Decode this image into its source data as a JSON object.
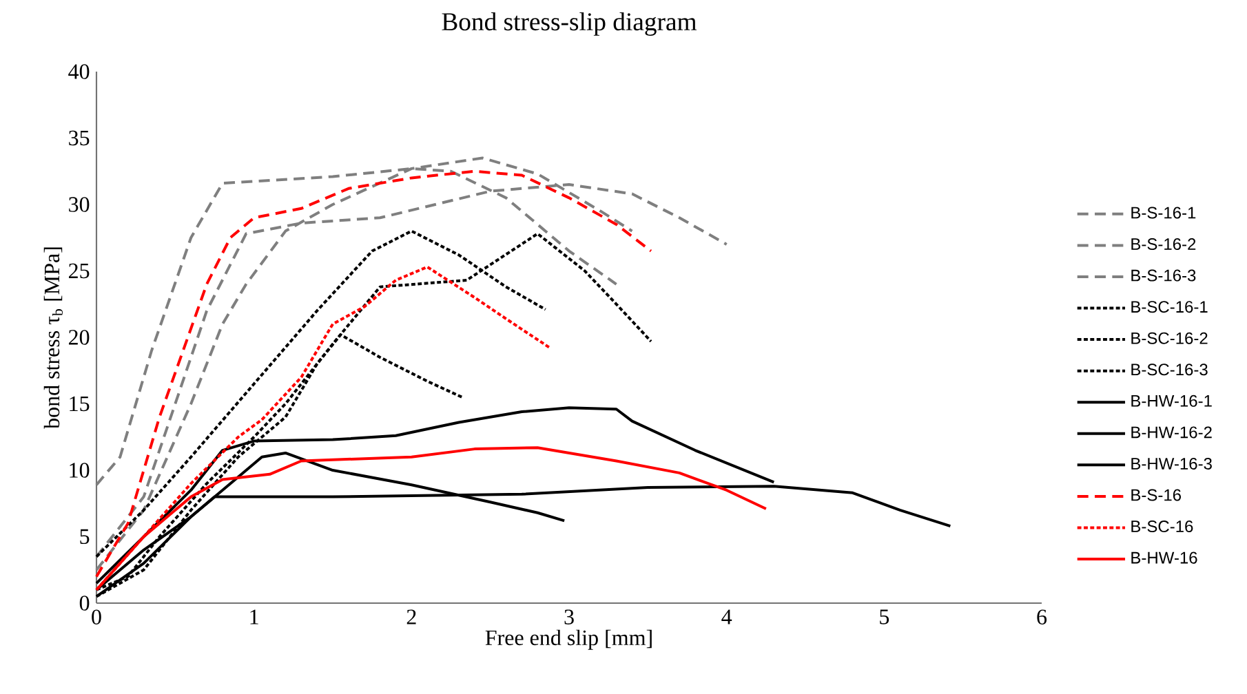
{
  "chart_data": {
    "type": "line",
    "title": "Bond stress-slip diagram",
    "xlabel": "Free end slip  [mm]",
    "ylabel": "bond stress τ$_{b}$ [MPa]",
    "xlim": [
      0,
      6
    ],
    "xticks": [
      0,
      1,
      2,
      3,
      4,
      5,
      6
    ],
    "ylim": [
      0,
      40
    ],
    "yticks": [
      0,
      5,
      10,
      15,
      20,
      25,
      30,
      35,
      40
    ],
    "grid": false,
    "legend": "right",
    "series": [
      {
        "name": "B-S-16-1",
        "color": "#7f7f7f",
        "line_style": "dashed",
        "x": [
          0,
          0.15,
          0.35,
          0.6,
          0.8,
          1.5,
          2.0,
          2.25,
          2.6,
          3.0,
          3.3
        ],
        "values": [
          8.9,
          11,
          19,
          27.5,
          31.6,
          32.1,
          32.7,
          32.5,
          30.5,
          26.5,
          24
        ]
      },
      {
        "name": "B-S-16-2",
        "color": "#7f7f7f",
        "line_style": "dashed",
        "x": [
          0,
          0.3,
          0.6,
          0.8,
          0.95,
          1.2,
          1.5,
          2.0,
          2.45,
          2.8,
          3.2,
          3.4
        ],
        "values": [
          2.5,
          7,
          15,
          21,
          24,
          28,
          30,
          32.7,
          33.5,
          32.3,
          29.5,
          28
        ]
      },
      {
        "name": "B-S-16-3",
        "color": "#7f7f7f",
        "line_style": "dashed",
        "x": [
          0,
          0.3,
          0.5,
          0.7,
          0.95,
          1.3,
          1.8,
          2.5,
          3.0,
          3.4,
          3.7,
          4.0
        ],
        "values": [
          3.5,
          8,
          15,
          22,
          27.8,
          28.6,
          29,
          31,
          31.5,
          30.8,
          29,
          27
        ]
      },
      {
        "name": "B-SC-16-1",
        "color": "#000000",
        "line_style": "dotted",
        "x": [
          0,
          0.3,
          0.6,
          1.0,
          1.4,
          1.75,
          2.0,
          2.3,
          2.6,
          2.85
        ],
        "values": [
          3.5,
          7,
          11,
          16.5,
          22,
          26.5,
          28,
          26.2,
          23.8,
          22.1
        ]
      },
      {
        "name": "B-SC-16-2",
        "color": "#000000",
        "line_style": "dotted",
        "x": [
          0,
          0.2,
          0.4,
          0.7,
          1.0,
          1.2,
          1.5,
          1.8,
          2.35,
          2.8,
          3.1,
          3.3,
          3.52
        ],
        "values": [
          1,
          2,
          5,
          9,
          12.5,
          15,
          19.5,
          23.8,
          24.3,
          27.8,
          25,
          22.5,
          19.7
        ]
      },
      {
        "name": "B-SC-16-3",
        "color": "#000000",
        "line_style": "dotted",
        "x": [
          0,
          0.3,
          0.6,
          0.9,
          1.2,
          1.4,
          1.55,
          1.8,
          2.1,
          2.32
        ],
        "values": [
          0.5,
          2.5,
          7,
          11,
          14,
          18,
          20.2,
          18.5,
          16.7,
          15.5
        ]
      },
      {
        "name": "B-HW-16-1",
        "color": "#000000",
        "line_style": "solid",
        "x": [
          0,
          0.3,
          0.6,
          0.8,
          1.0,
          1.5,
          1.9,
          2.3,
          2.7,
          3.0,
          3.3,
          3.4,
          3.8,
          4.3
        ],
        "values": [
          1.5,
          5,
          8.5,
          11.5,
          12.2,
          12.3,
          12.6,
          13.6,
          14.4,
          14.7,
          14.6,
          13.7,
          11.5,
          9.1
        ]
      },
      {
        "name": "B-HW-16-2",
        "color": "#000000",
        "line_style": "solid",
        "x": [
          0,
          0.3,
          0.6,
          0.9,
          1.05,
          1.2,
          1.5,
          2.0,
          2.5,
          2.8,
          2.97
        ],
        "values": [
          0.5,
          3,
          6.5,
          9.5,
          11,
          11.3,
          10,
          8.9,
          7.6,
          6.8,
          6.2
        ]
      },
      {
        "name": "B-HW-16-3",
        "color": "#000000",
        "line_style": "solid",
        "x": [
          0,
          0.3,
          0.6,
          0.75,
          1.5,
          2.7,
          3.5,
          4.3,
          4.8,
          5.1,
          5.42
        ],
        "values": [
          1,
          4,
          6.5,
          8,
          8,
          8.2,
          8.7,
          8.8,
          8.3,
          7,
          5.8
        ]
      },
      {
        "name": "B-S-16",
        "color": "#ff0000",
        "line_style": "dashed",
        "x": [
          0,
          0.2,
          0.4,
          0.55,
          0.7,
          0.85,
          1.0,
          1.3,
          1.6,
          2.0,
          2.4,
          2.7,
          3.0,
          3.3,
          3.52
        ],
        "values": [
          2,
          6,
          14,
          19,
          24,
          27.5,
          29,
          29.7,
          31.2,
          32,
          32.5,
          32.2,
          30.5,
          28.5,
          26.5
        ]
      },
      {
        "name": "B-SC-16",
        "color": "#ff0000",
        "line_style": "dotted",
        "x": [
          0,
          0.3,
          0.6,
          0.9,
          1.05,
          1.3,
          1.5,
          1.7,
          1.9,
          2.1,
          2.4,
          2.65,
          2.88
        ],
        "values": [
          1,
          5,
          9,
          12.5,
          13.8,
          17,
          21,
          22.3,
          24.3,
          25.3,
          23,
          21,
          19.2
        ]
      },
      {
        "name": "B-HW-16",
        "color": "#ff0000",
        "line_style": "solid",
        "x": [
          0,
          0.3,
          0.6,
          0.8,
          1.1,
          1.3,
          2.0,
          2.4,
          2.8,
          3.3,
          3.7,
          4.0,
          4.25
        ],
        "values": [
          1,
          5,
          8,
          9.3,
          9.7,
          10.7,
          11,
          11.6,
          11.7,
          10.7,
          9.8,
          8.5,
          7.1
        ]
      }
    ]
  }
}
